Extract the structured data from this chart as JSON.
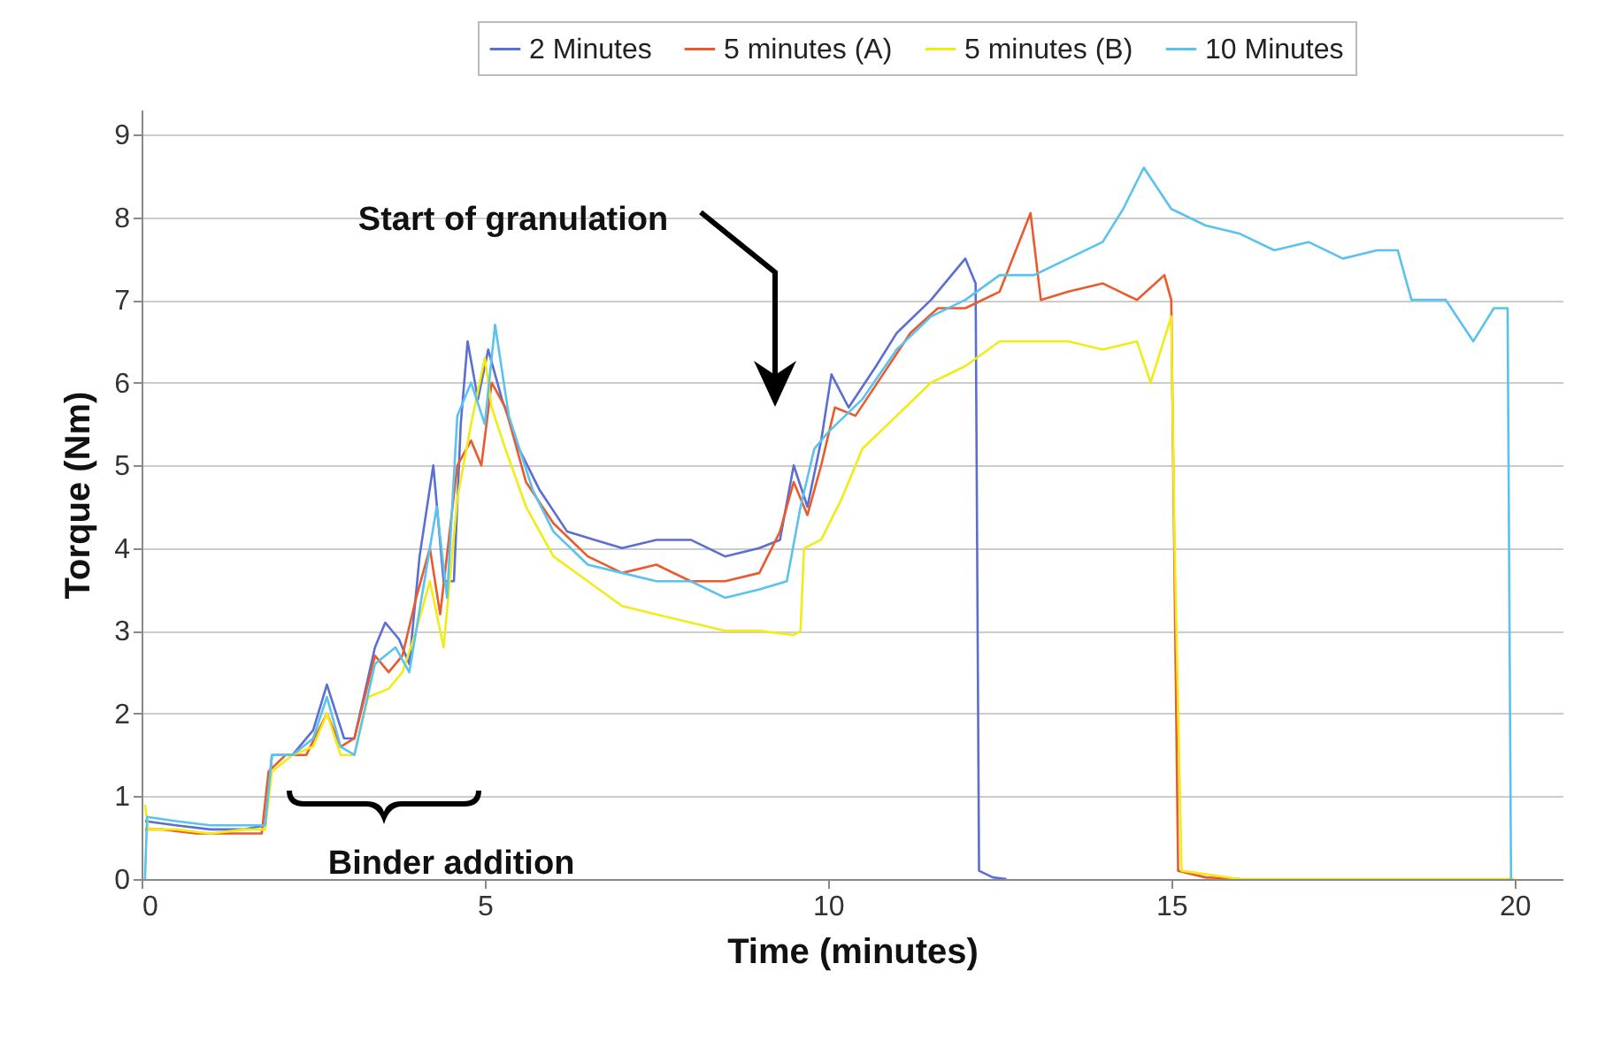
{
  "chart_data": {
    "type": "line",
    "xlabel": "Time (minutes)",
    "ylabel": "Torque (Nm)",
    "xlim": [
      0,
      20.7
    ],
    "xticks": [
      0,
      5,
      10,
      15,
      20
    ],
    "ylim": [
      0,
      9.3
    ],
    "yticks": [
      0,
      1,
      2,
      3,
      4,
      5,
      6,
      7,
      8,
      9
    ],
    "grid": "y",
    "legend": "top",
    "annotations": [
      "Start of granulation",
      "Binder addition"
    ],
    "series": [
      {
        "name": "2 Minutes",
        "color": "#5b6ed1",
        "x": [
          0.05,
          0.5,
          1,
          1.5,
          1.8,
          1.9,
          2.2,
          2.5,
          2.7,
          2.95,
          3.1,
          3.4,
          3.55,
          3.75,
          3.9,
          4.05,
          4.25,
          4.4,
          4.55,
          4.65,
          4.75,
          4.9,
          5.05,
          5.25,
          5.5,
          5.8,
          6.2,
          6.6,
          7,
          7.5,
          8,
          8.5,
          9,
          9.3,
          9.5,
          9.7,
          9.9,
          10.05,
          10.3,
          10.7,
          11,
          11.5,
          12,
          12.15,
          12.2,
          12.4,
          12.6
        ],
        "values": [
          0.7,
          0.65,
          0.6,
          0.6,
          0.65,
          1.5,
          1.5,
          1.8,
          2.35,
          1.7,
          1.7,
          2.8,
          3.1,
          2.9,
          2.6,
          3.9,
          5.0,
          3.6,
          3.6,
          5.5,
          6.5,
          5.8,
          6.4,
          5.8,
          5.2,
          4.7,
          4.2,
          4.1,
          4.0,
          4.1,
          4.1,
          3.9,
          4.0,
          4.1,
          5.0,
          4.5,
          5.3,
          6.1,
          5.7,
          6.2,
          6.6,
          7.0,
          7.5,
          7.2,
          0.1,
          0.02,
          0
        ]
      },
      {
        "name": "5 minutes (A)",
        "color": "#ea5a2c",
        "x": [
          0.05,
          0.3,
          0.8,
          1.3,
          1.75,
          1.85,
          2.1,
          2.4,
          2.7,
          2.9,
          3.1,
          3.4,
          3.6,
          3.8,
          4.0,
          4.2,
          4.35,
          4.6,
          4.8,
          4.95,
          5.1,
          5.3,
          5.6,
          6.0,
          6.5,
          7.0,
          7.5,
          8.0,
          8.5,
          9.0,
          9.3,
          9.5,
          9.7,
          9.9,
          10.1,
          10.4,
          10.8,
          11.2,
          11.6,
          12.0,
          12.5,
          12.95,
          13.1,
          13.5,
          14.0,
          14.5,
          14.9,
          15.0,
          15.1,
          15.5,
          16
        ],
        "values": [
          0.6,
          0.6,
          0.55,
          0.55,
          0.55,
          1.3,
          1.5,
          1.5,
          2.0,
          1.6,
          1.7,
          2.7,
          2.5,
          2.7,
          3.4,
          4.0,
          3.2,
          5.0,
          5.3,
          5.0,
          6.0,
          5.7,
          4.8,
          4.3,
          3.9,
          3.7,
          3.8,
          3.6,
          3.6,
          3.7,
          4.2,
          4.8,
          4.4,
          5.0,
          5.7,
          5.6,
          6.1,
          6.6,
          6.9,
          6.9,
          7.1,
          8.05,
          7.0,
          7.1,
          7.2,
          7.0,
          7.3,
          7.0,
          0.1,
          0.02,
          0
        ]
      },
      {
        "name": "5 minutes (B)",
        "color": "#f2ec16",
        "x": [
          0.05,
          0.1,
          0.5,
          1,
          1.5,
          1.8,
          1.9,
          2.2,
          2.5,
          2.7,
          2.9,
          3.1,
          3.3,
          3.6,
          3.8,
          4.0,
          4.2,
          4.4,
          4.6,
          4.8,
          5.0,
          5.1,
          5.3,
          5.6,
          6.0,
          6.5,
          7,
          7.5,
          8,
          8.5,
          9,
          9.5,
          9.6,
          9.65,
          9.9,
          10.2,
          10.5,
          11,
          11.5,
          12,
          12.5,
          13,
          13.5,
          14,
          14.5,
          14.7,
          15.0,
          15.05,
          15.15,
          16,
          20
        ],
        "values": [
          0.9,
          0.6,
          0.6,
          0.55,
          0.6,
          0.6,
          1.3,
          1.5,
          1.6,
          2.0,
          1.5,
          1.5,
          2.2,
          2.3,
          2.5,
          3.0,
          3.6,
          2.8,
          4.6,
          5.5,
          6.3,
          5.7,
          5.2,
          4.5,
          3.9,
          3.6,
          3.3,
          3.2,
          3.1,
          3.0,
          3.0,
          2.95,
          3.0,
          4.0,
          4.1,
          4.6,
          5.2,
          5.6,
          6.0,
          6.2,
          6.5,
          6.5,
          6.5,
          6.4,
          6.5,
          6.0,
          6.8,
          4.0,
          0.1,
          0,
          0
        ]
      },
      {
        "name": "10 Minutes",
        "color": "#59c3ee",
        "x": [
          0.05,
          0.08,
          0.5,
          1,
          1.5,
          1.8,
          1.9,
          2.2,
          2.5,
          2.7,
          2.9,
          3.1,
          3.4,
          3.7,
          3.9,
          4.1,
          4.3,
          4.45,
          4.6,
          4.8,
          5.0,
          5.15,
          5.35,
          5.7,
          6.0,
          6.5,
          7,
          7.5,
          8,
          8.5,
          9,
          9.4,
          9.6,
          9.8,
          10.0,
          10.5,
          11,
          11.5,
          12,
          12.5,
          13,
          13.5,
          14,
          14.3,
          14.6,
          15,
          15.5,
          16,
          16.5,
          17,
          17.5,
          18,
          18.3,
          18.5,
          19,
          19.4,
          19.7,
          19.9,
          19.95
        ],
        "values": [
          0,
          0.75,
          0.7,
          0.65,
          0.65,
          0.65,
          1.5,
          1.5,
          1.7,
          2.2,
          1.6,
          1.5,
          2.6,
          2.8,
          2.5,
          3.5,
          4.5,
          3.4,
          5.6,
          6.0,
          5.5,
          6.7,
          5.6,
          4.7,
          4.2,
          3.8,
          3.7,
          3.6,
          3.6,
          3.4,
          3.5,
          3.6,
          4.5,
          5.2,
          5.4,
          5.8,
          6.4,
          6.8,
          7.0,
          7.3,
          7.3,
          7.5,
          7.7,
          8.1,
          8.6,
          8.1,
          7.9,
          7.8,
          7.6,
          7.7,
          7.5,
          7.6,
          7.6,
          7.0,
          7.0,
          6.5,
          6.9,
          6.9,
          0
        ]
      }
    ]
  }
}
